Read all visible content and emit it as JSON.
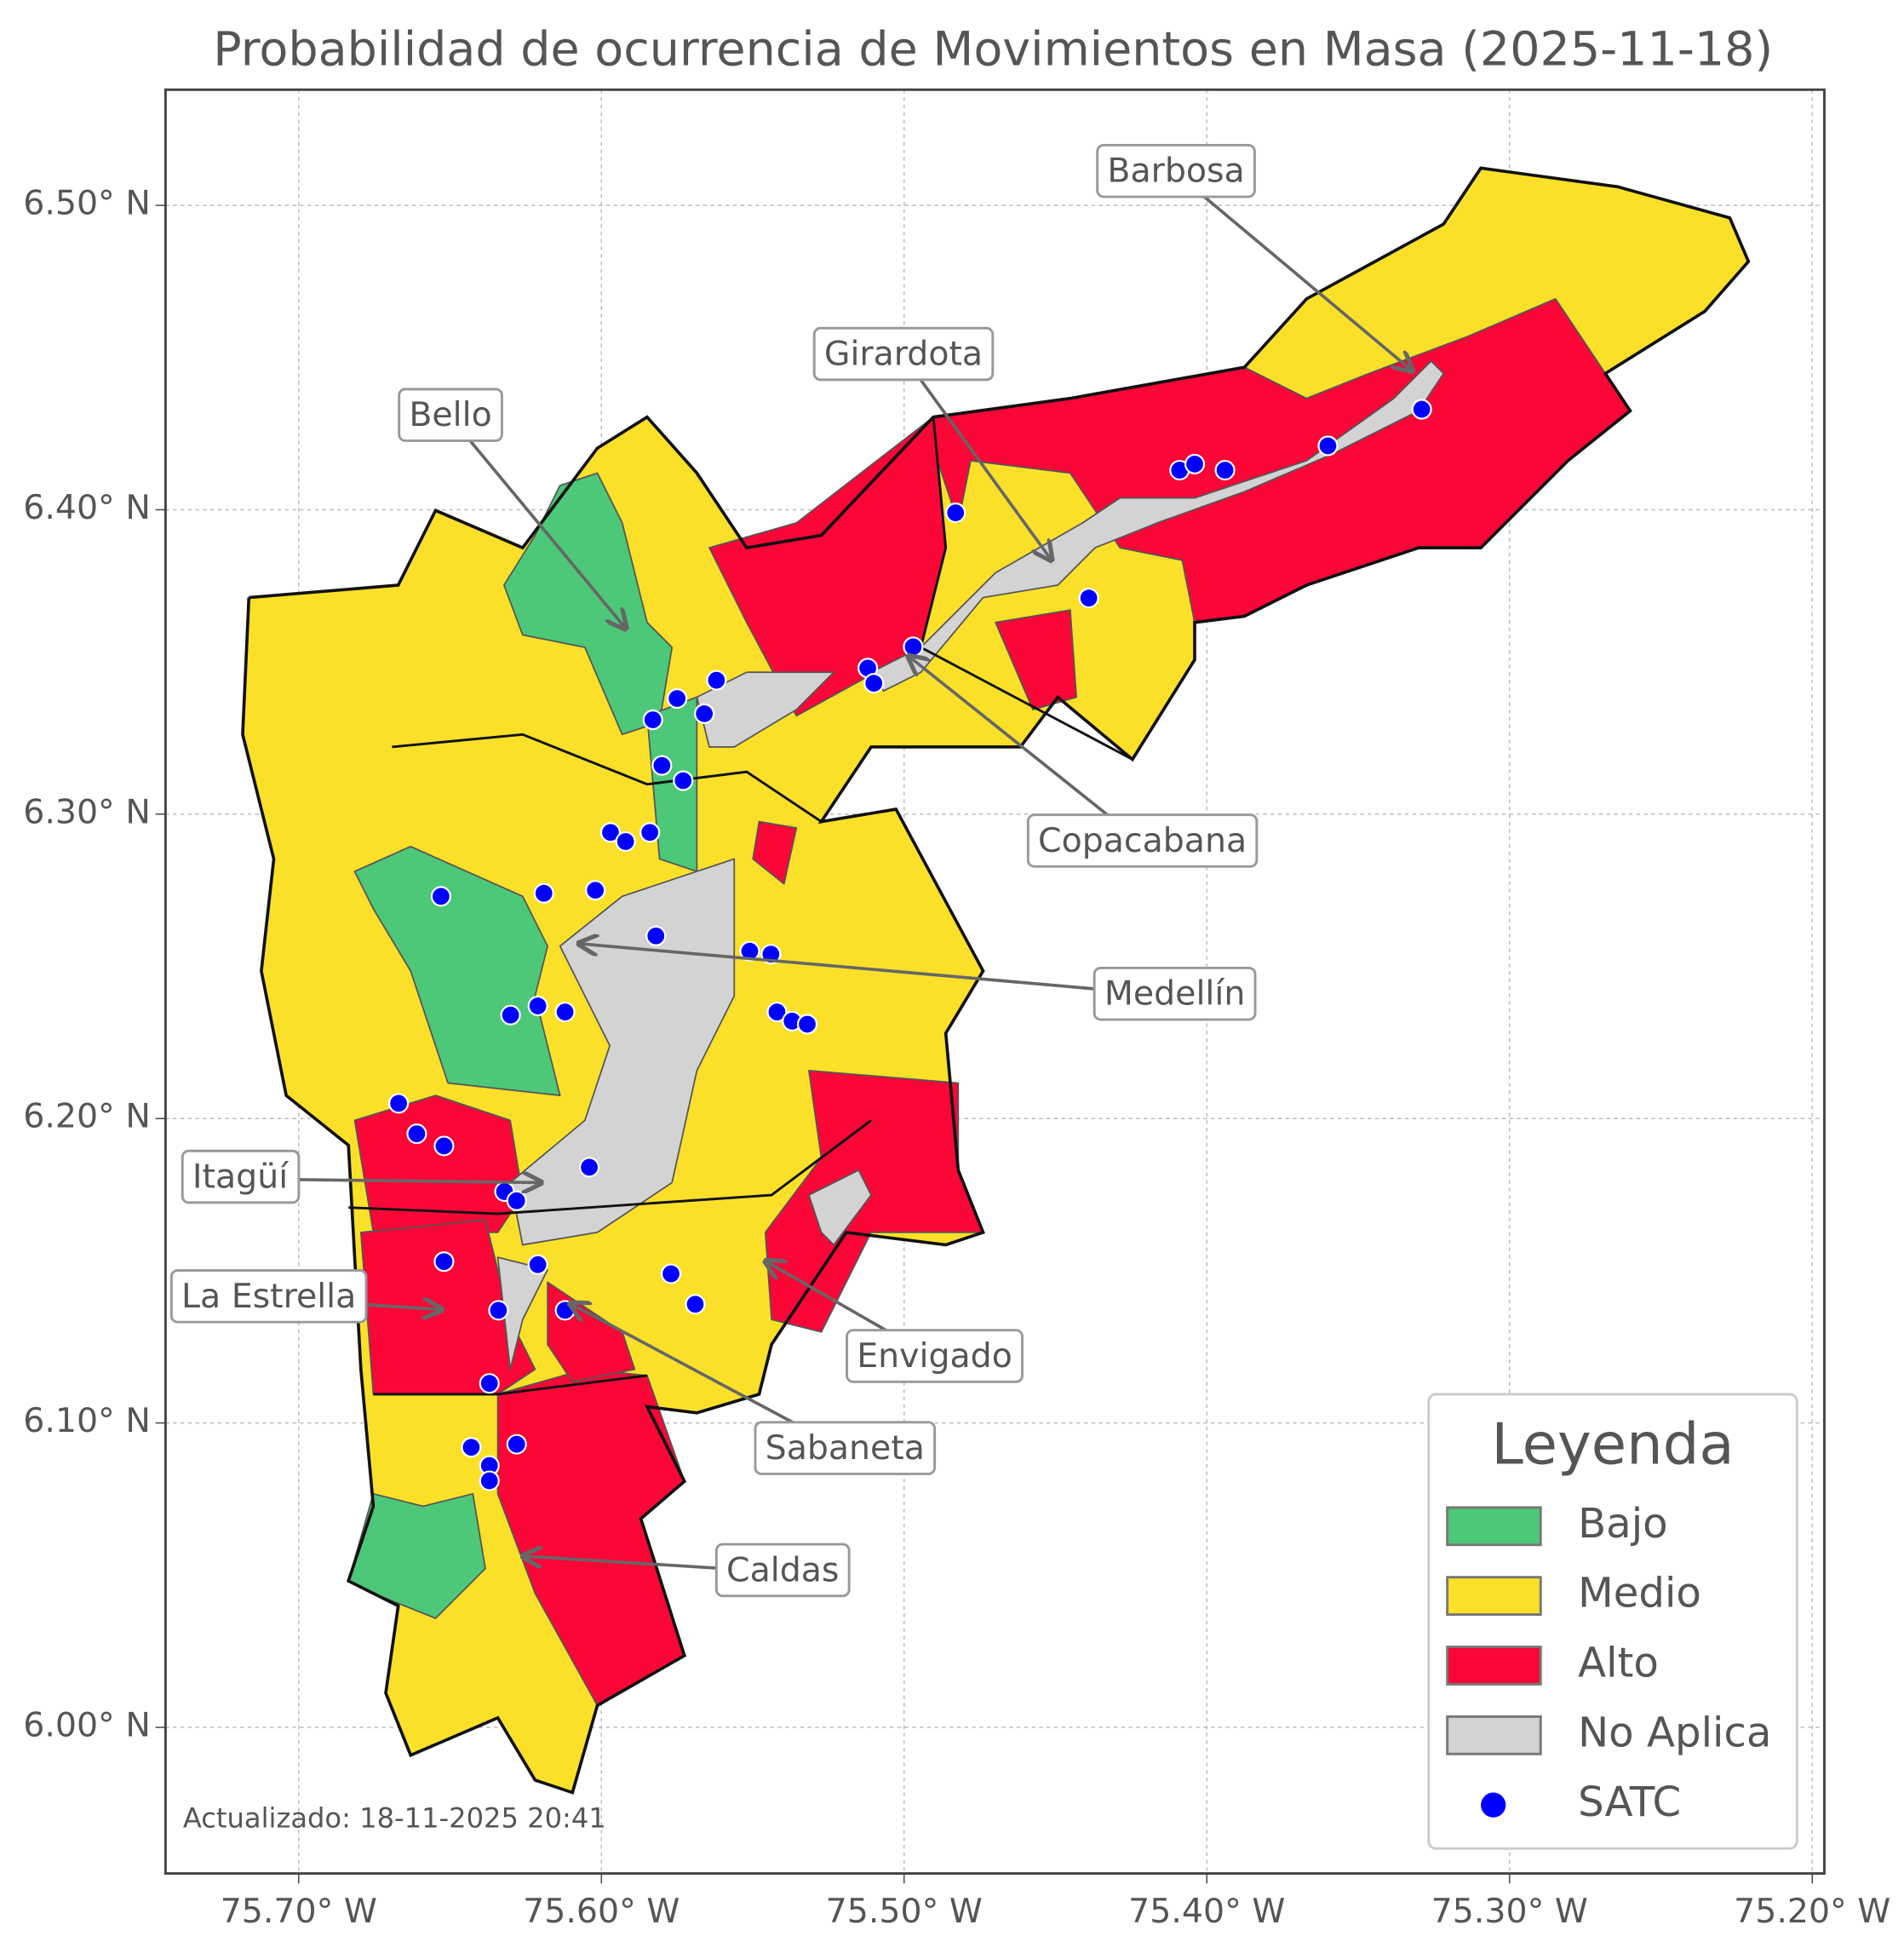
{
  "chart_data": {
    "type": "map",
    "title": "Probabilidad de ocurrencia de Movimientos en Masa (2025-11-18)",
    "xlim": [
      -75.744,
      -75.196
    ],
    "ylim": [
      5.952,
      6.538
    ],
    "xticks": [
      {
        "value": -75.7,
        "label": "75.70° W"
      },
      {
        "value": -75.6,
        "label": "75.60° W"
      },
      {
        "value": -75.5,
        "label": "75.50° W"
      },
      {
        "value": -75.4,
        "label": "75.40° W"
      },
      {
        "value": -75.3,
        "label": "75.30° W"
      },
      {
        "value": -75.2,
        "label": "75.20° W"
      }
    ],
    "yticks": [
      {
        "value": 6.0,
        "label": "6.00° N"
      },
      {
        "value": 6.1,
        "label": "6.10° N"
      },
      {
        "value": 6.2,
        "label": "6.20° N"
      },
      {
        "value": 6.3,
        "label": "6.30° N"
      },
      {
        "value": 6.4,
        "label": "6.40° N"
      },
      {
        "value": 6.5,
        "label": "6.50° N"
      }
    ],
    "grid": true,
    "legend": {
      "title": "Leyenda",
      "corner": "lower right",
      "entries": [
        {
          "name": "Bajo",
          "color": "#4cc878"
        },
        {
          "name": "Medio",
          "color": "#fbe02a"
        },
        {
          "name": "Alto",
          "color": "#fa0637"
        },
        {
          "name": "No Aplica",
          "color": "#d3d3d3"
        }
      ]
    },
    "series": [
      {
        "name": "SATC",
        "color": "#0000ff",
        "x": [
          -75.483,
          -75.409,
          -75.404,
          -75.394,
          -75.36,
          -75.329,
          -75.439,
          -75.512,
          -75.51,
          -75.497,
          -75.562,
          -75.575,
          -75.566,
          -75.583,
          -75.58,
          -75.573,
          -75.597,
          -75.592,
          -75.584,
          -75.602,
          -75.619,
          -75.653,
          -75.582,
          -75.551,
          -75.544,
          -75.542,
          -75.537,
          -75.532,
          -75.621,
          -75.63,
          -75.612,
          -75.667,
          -75.661,
          -75.652,
          -75.632,
          -75.628,
          -75.604,
          -75.652,
          -75.621,
          -75.577,
          -75.569,
          -75.634,
          -75.612,
          -75.637,
          -75.643,
          -75.628,
          -75.637,
          -75.637
        ],
        "values": [
          6.399,
          6.413,
          6.415,
          6.413,
          6.421,
          6.433,
          6.371,
          6.348,
          6.343,
          6.355,
          6.344,
          6.338,
          6.333,
          6.331,
          6.316,
          6.311,
          6.294,
          6.291,
          6.294,
          6.275,
          6.274,
          6.273,
          6.26,
          6.255,
          6.254,
          6.235,
          6.232,
          6.231,
          6.237,
          6.234,
          6.235,
          6.205,
          6.195,
          6.191,
          6.176,
          6.173,
          6.184,
          6.153,
          6.152,
          6.149,
          6.139,
          6.137,
          6.137,
          6.113,
          6.092,
          6.093,
          6.086,
          6.081
        ]
      }
    ],
    "annotations": [
      "Barbosa",
      "Girardota",
      "Bello",
      "Copacabana",
      "Medellín",
      "Itagüí",
      "La Estrella",
      "Envigado",
      "Sabaneta",
      "Caldas"
    ],
    "footnote": "Actualizado: 18-11-2025 20:41"
  }
}
